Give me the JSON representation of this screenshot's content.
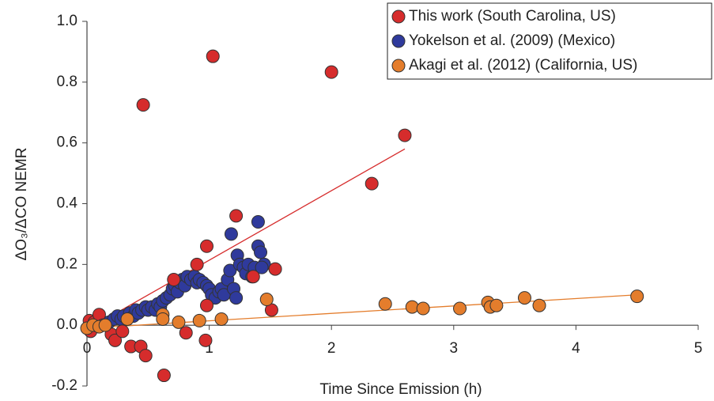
{
  "chart_data": {
    "type": "scatter",
    "xlabel": "Time Since Emission (h)",
    "ylabel": "ΔO₃/ΔCO NEMR",
    "xlim": [
      0,
      5
    ],
    "ylim": [
      -0.2,
      1.0
    ],
    "xticks": [
      0,
      1,
      2,
      3,
      4,
      5
    ],
    "yticks": [
      {
        "value": 1.0,
        "label": "1.0"
      },
      0.8,
      0.6,
      0.4,
      0.2,
      {
        "value": 0,
        "label": "0.0"
      },
      -0.2
    ],
    "legend": "top-right",
    "series": [
      {
        "name": "This work (South Carolina, US)",
        "color": "#d62c2c",
        "x": [
          0.02,
          0.03,
          0.06,
          0.1,
          0.13,
          0.2,
          0.23,
          0.29,
          0.36,
          0.44,
          0.46,
          0.48,
          0.63,
          0.71,
          0.81,
          0.9,
          0.97,
          0.98,
          0.98,
          1.03,
          1.22,
          1.36,
          1.51,
          1.54,
          2.0,
          2.33,
          2.6
        ],
        "y": [
          0.015,
          -0.02,
          0.01,
          0.035,
          0.0,
          -0.03,
          -0.05,
          -0.02,
          -0.07,
          -0.07,
          0.725,
          -0.1,
          -0.165,
          0.15,
          -0.025,
          0.2,
          -0.05,
          0.26,
          0.065,
          0.885,
          0.36,
          0.16,
          0.05,
          0.185,
          0.833,
          0.466,
          0.625
        ],
        "trend": {
          "x": [
            0.13,
            2.6
          ],
          "y": [
            0.015,
            0.58
          ]
        }
      },
      {
        "name": "Yokelson et al. (2009) (Mexico)",
        "color": "#2f3a9c",
        "x": [
          0.18,
          0.22,
          0.25,
          0.28,
          0.3,
          0.35,
          0.38,
          0.4,
          0.42,
          0.45,
          0.48,
          0.5,
          0.53,
          0.56,
          0.58,
          0.6,
          0.62,
          0.65,
          0.68,
          0.7,
          0.72,
          0.74,
          0.76,
          0.78,
          0.8,
          0.82,
          0.85,
          0.88,
          0.9,
          0.92,
          0.95,
          0.98,
          1.0,
          1.02,
          1.05,
          1.08,
          1.1,
          1.12,
          1.15,
          1.17,
          1.18,
          1.2,
          1.22,
          1.23,
          1.25,
          1.28,
          1.3,
          1.32,
          1.35,
          1.37,
          1.4,
          1.4,
          1.42,
          1.45,
          1.43
        ],
        "y": [
          0.01,
          0.02,
          0.03,
          0.02,
          0.03,
          0.04,
          0.03,
          0.05,
          0.04,
          0.05,
          0.06,
          0.05,
          0.06,
          0.05,
          0.07,
          0.06,
          0.08,
          0.09,
          0.1,
          0.12,
          0.13,
          0.11,
          0.14,
          0.15,
          0.13,
          0.16,
          0.15,
          0.16,
          0.14,
          0.15,
          0.14,
          0.13,
          0.12,
          0.1,
          0.09,
          0.11,
          0.12,
          0.1,
          0.15,
          0.18,
          0.3,
          0.12,
          0.09,
          0.23,
          0.2,
          0.19,
          0.17,
          0.2,
          0.16,
          0.19,
          0.34,
          0.26,
          0.24,
          0.2,
          0.19
        ]
      },
      {
        "name": "Akagi et al. (2012) (California, US)",
        "color": "#e47d2c",
        "x": [
          0.0,
          0.05,
          0.1,
          0.15,
          0.33,
          0.62,
          0.62,
          0.75,
          0.92,
          1.1,
          1.47,
          2.44,
          2.66,
          2.75,
          3.05,
          3.28,
          3.3,
          3.35,
          3.58,
          3.7,
          4.5
        ],
        "y": [
          -0.01,
          0.0,
          -0.005,
          0.0,
          0.02,
          0.035,
          0.02,
          0.01,
          0.015,
          0.02,
          0.085,
          0.07,
          0.06,
          0.055,
          0.055,
          0.075,
          0.06,
          0.065,
          0.09,
          0.065,
          0.095
        ],
        "trend": {
          "x": [
            0.0,
            4.5
          ],
          "y": [
            -0.01,
            0.1
          ]
        }
      }
    ]
  }
}
